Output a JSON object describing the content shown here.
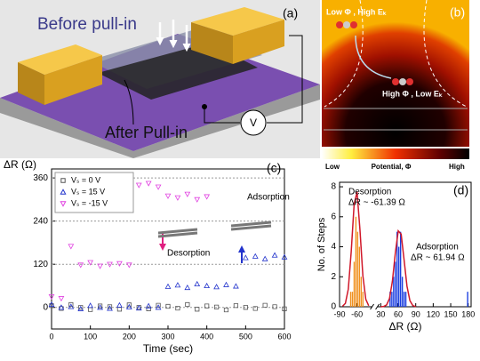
{
  "panel_a": {
    "label": "(a)",
    "before": "Before pull-in",
    "after": "After Pull-in",
    "voltage": "V"
  },
  "panel_b": {
    "label": "(b)",
    "start_state": "Low Φ , High Eₖ",
    "end_state": "High Φ , Low Eₖ",
    "colorbar_low": "Low",
    "colorbar_title": "Potential, Φ",
    "colorbar_high": "High"
  },
  "chart_data": [
    {
      "type": "scatter",
      "label": "(c)",
      "ylabel": "ΔR (Ω)",
      "xlabel": "Time (sec)",
      "xlim": [
        0,
        600
      ],
      "xticks": [
        0,
        100,
        200,
        300,
        400,
        500,
        600
      ],
      "ylim": [
        -60,
        385
      ],
      "yticks": [
        0,
        120,
        240,
        360
      ],
      "grid": true,
      "legend": "upper left",
      "annotations": [
        "Desorption",
        "Adsorption"
      ],
      "x": [
        0,
        25,
        50,
        75,
        100,
        125,
        150,
        175,
        200,
        225,
        250,
        275,
        300,
        325,
        350,
        375,
        400,
        425,
        450,
        475,
        500,
        525,
        550,
        575,
        600
      ],
      "series": [
        {
          "name": "Vₛ =   0 V",
          "color": "#555555",
          "marker": "square",
          "values": [
            5,
            -3,
            8,
            0,
            -6,
            4,
            2,
            -5,
            7,
            0,
            -4,
            6,
            3,
            -2,
            8,
            -5,
            4,
            1,
            -7,
            5,
            0,
            -3,
            6,
            2,
            -4
          ]
        },
        {
          "name": "Vₛ = 15 V",
          "color": "#2233cc",
          "marker": "triangle-up",
          "values": [
            8,
            0,
            2,
            -4,
            5,
            0,
            -3,
            6,
            1,
            -2,
            4,
            0,
            58,
            62,
            55,
            65,
            60,
            57,
            63,
            59,
            138,
            142,
            135,
            145,
            140
          ]
        },
        {
          "name": "Vₛ = -15 V",
          "color": "#e040e0",
          "marker": "triangle-down",
          "values": [
            30,
            25,
            170,
            118,
            125,
            115,
            120,
            122,
            118,
            340,
            345,
            335,
            310,
            305,
            315,
            300,
            308,
            null,
            null,
            null,
            null,
            null,
            null,
            null,
            null
          ]
        }
      ]
    },
    {
      "type": "histogram",
      "label": "(d)",
      "ylabel": "No. of Steps",
      "xlabel": "ΔR (Ω)",
      "xlim": [
        -90,
        185
      ],
      "x_break": [
        -35,
        25
      ],
      "xticks": [
        -90,
        -60,
        30,
        60,
        90,
        120,
        150,
        180
      ],
      "ylim": [
        0,
        8.3
      ],
      "yticks": [
        0,
        2,
        4,
        6,
        8
      ],
      "annotations": [
        "Desorption",
        "ΔR ~ -61.39 Ω",
        "Adsorption",
        "ΔR ~ 61.94 Ω"
      ],
      "histograms": [
        {
          "color": "#f0901c",
          "bins": [
            -72,
            -69,
            -66,
            -63,
            -60,
            -57,
            -54,
            -51,
            -48
          ],
          "values": [
            1,
            1,
            3,
            6,
            5,
            4,
            2,
            1
          ]
        },
        {
          "color": "#1a3ee0",
          "bins": [
            45,
            48,
            51,
            54,
            57,
            60,
            63,
            66,
            69,
            72,
            75
          ],
          "values": [
            1,
            1,
            2,
            3,
            5,
            4,
            5,
            2,
            1,
            1
          ]
        },
        {
          "color": "#1a3ee0",
          "bins": [
            178,
            181
          ],
          "values": [
            1
          ]
        }
      ],
      "curves": [
        {
          "color": "#d0182a",
          "x": [
            -85,
            -80,
            -75,
            -70,
            -65,
            -60,
            -55,
            -50,
            -45,
            -40
          ],
          "values": [
            0.03,
            0.23,
            1.18,
            3.67,
            6.83,
            7.65,
            5.13,
            2.07,
            0.5,
            0.07
          ]
        },
        {
          "color": "#d0182a",
          "x": [
            30,
            35,
            40,
            45,
            50,
            55,
            60,
            65,
            70,
            75,
            80,
            85,
            90
          ],
          "values": [
            0,
            0.02,
            0.12,
            0.55,
            1.71,
            3.58,
            5.06,
            4.84,
            3.13,
            1.37,
            0.41,
            0.08,
            0.01
          ]
        }
      ]
    }
  ]
}
